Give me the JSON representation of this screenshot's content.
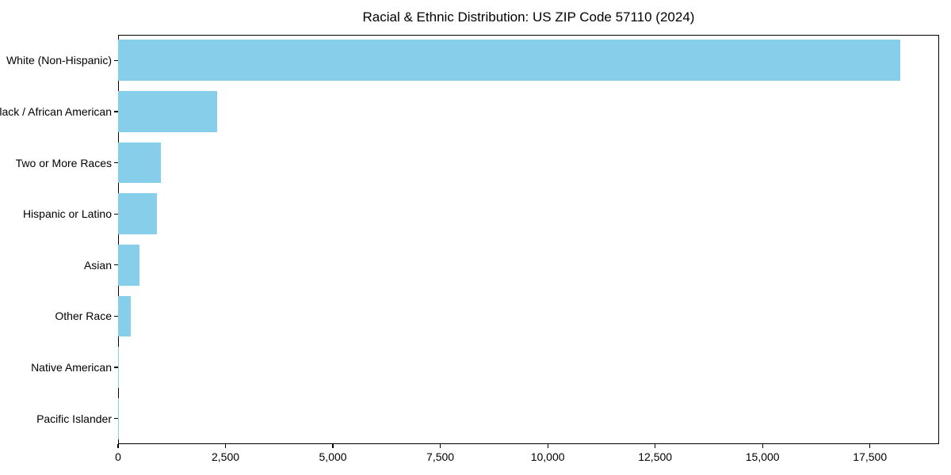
{
  "chart_data": {
    "type": "bar",
    "orientation": "horizontal",
    "title": "Racial & Ethnic Distribution: US ZIP Code 57110 (2024)",
    "categories": [
      "White (Non-Hispanic)",
      "Black / African American",
      "Two or More Races",
      "Hispanic or Latino",
      "Asian",
      "Other Race",
      "Native American",
      "Pacific Islander"
    ],
    "values": [
      18200,
      2300,
      1000,
      900,
      500,
      300,
      25,
      5
    ],
    "xlabel": "",
    "ylabel": "",
    "xlim": [
      0,
      19110
    ],
    "x_ticks": [
      0,
      2500,
      5000,
      7500,
      10000,
      12500,
      15000,
      17500
    ],
    "x_tick_labels": [
      "0",
      "2,500",
      "5,000",
      "7,500",
      "10,000",
      "12,500",
      "15,000",
      "17,500"
    ],
    "bar_color": "#87CEEB",
    "axis_color": "#000000",
    "background_color": "#ffffff",
    "grid": false,
    "legend": null,
    "bar_height_fraction": 0.8
  }
}
